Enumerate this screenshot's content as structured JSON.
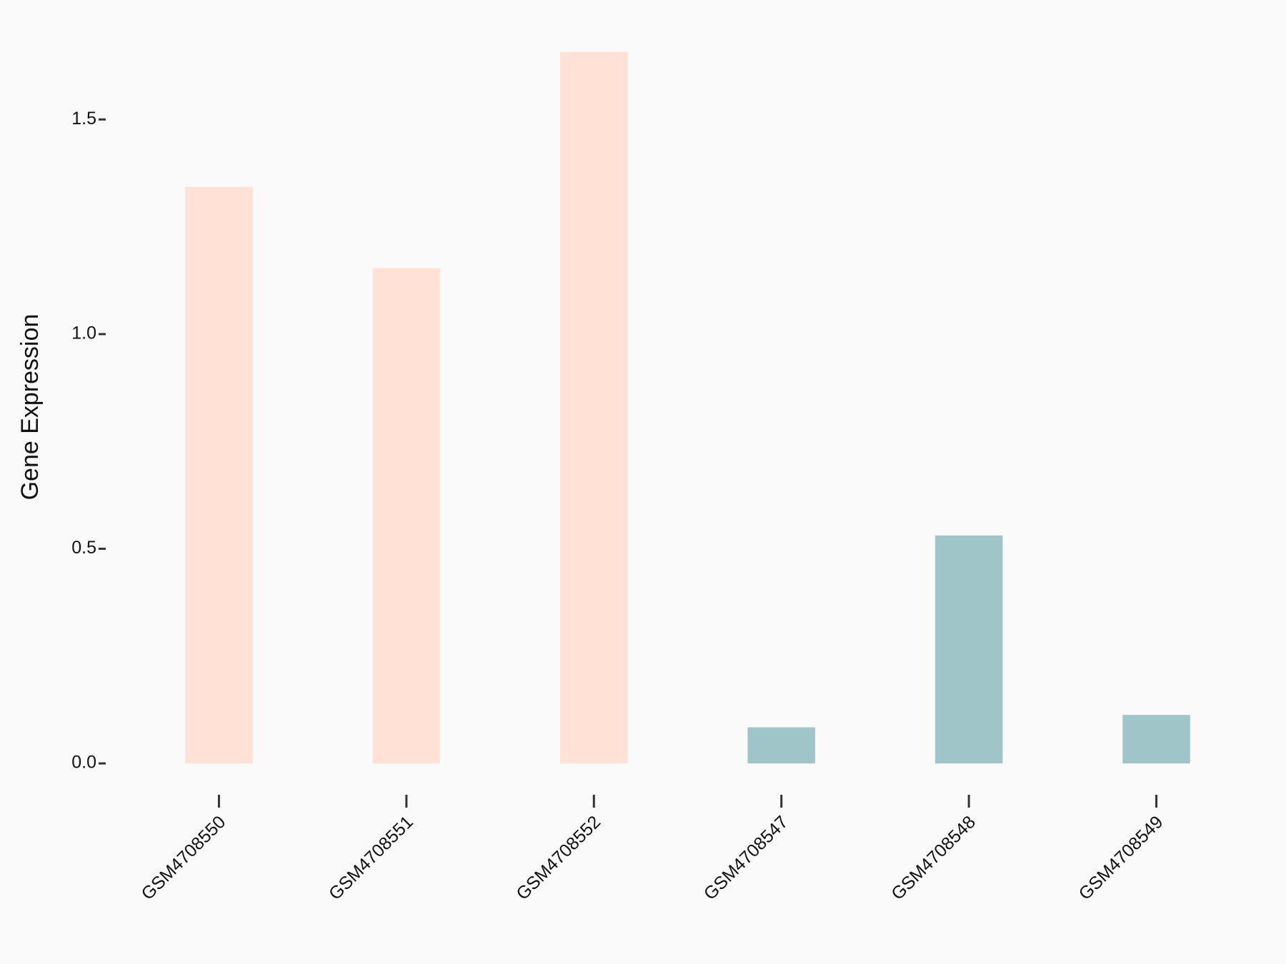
{
  "chart_data": {
    "type": "bar",
    "y_label": "Gene Expression",
    "categories": [
      "GSM4708550",
      "GSM4708551",
      "GSM4708552",
      "GSM4708547",
      "GSM4708548",
      "GSM4708549"
    ],
    "values": [
      1.343,
      1.154,
      1.657,
      0.084,
      0.531,
      0.113
    ],
    "colors": [
      "#ffe1d6",
      "#ffe1d6",
      "#ffe1d6",
      "#9fc5c8",
      "#9fc5c8",
      "#9fc5c8"
    ],
    "ylim": [
      -0.083,
      1.74
    ],
    "yticks": [
      {
        "value": 0,
        "label": "0.0"
      },
      0.5,
      {
        "value": 1,
        "label": "1.0"
      },
      1.5
    ],
    "grid": false
  }
}
